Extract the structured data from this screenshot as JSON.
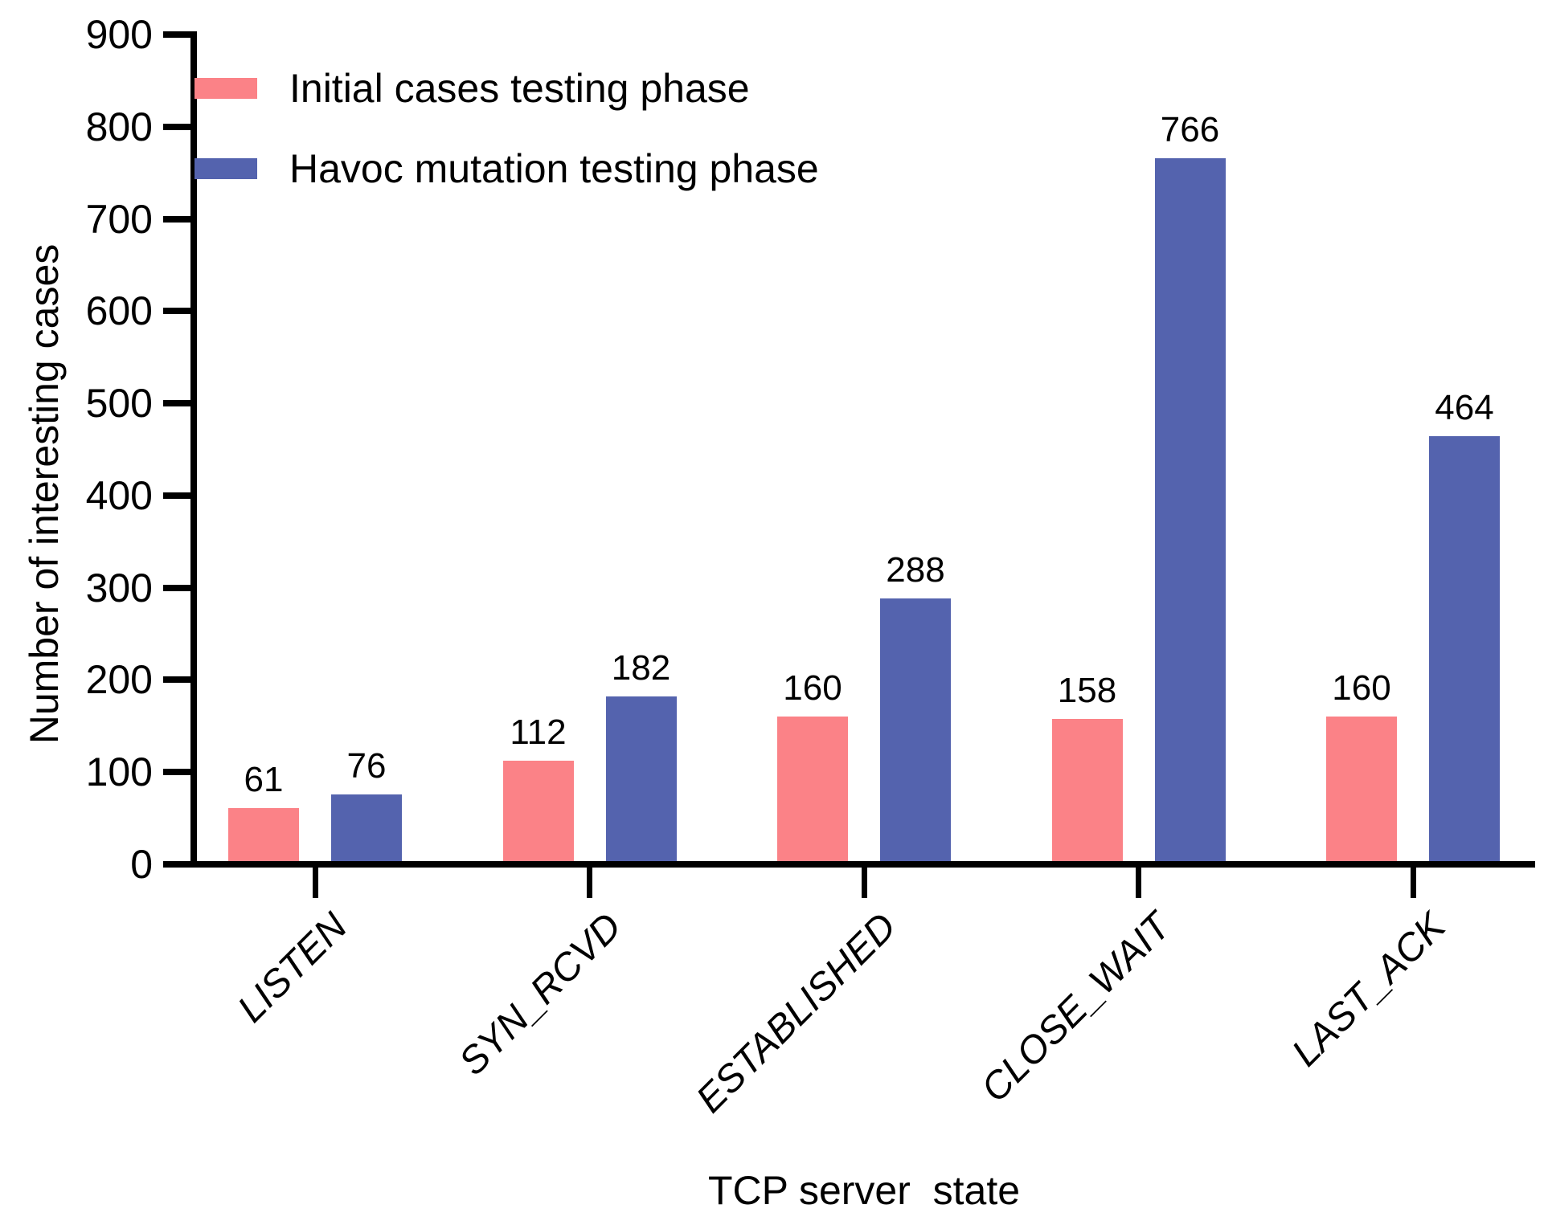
{
  "chart_data": {
    "type": "bar",
    "title": "",
    "xlabel": "TCP server  state",
    "ylabel": "Number of interesting cases",
    "categories": [
      "LISTEN",
      "SYN_RCVD",
      "ESTABLISHED",
      "CLOSE_WAIT",
      "LAST_ACK"
    ],
    "series": [
      {
        "name": "Initial cases testing phase",
        "color": "#FB8287",
        "values": [
          61,
          112,
          160,
          158,
          160
        ]
      },
      {
        "name": "Havoc mutation testing phase",
        "color": "#5463AE",
        "values": [
          76,
          182,
          288,
          766,
          464
        ]
      }
    ],
    "ylim": [
      0,
      900
    ],
    "yticks": [
      0,
      100,
      200,
      300,
      400,
      500,
      600,
      700,
      800,
      900
    ],
    "grid": false,
    "legend_position": "top-left",
    "value_labels_shown": true,
    "axis_color": "#000000",
    "background": "#FFFFFF"
  }
}
